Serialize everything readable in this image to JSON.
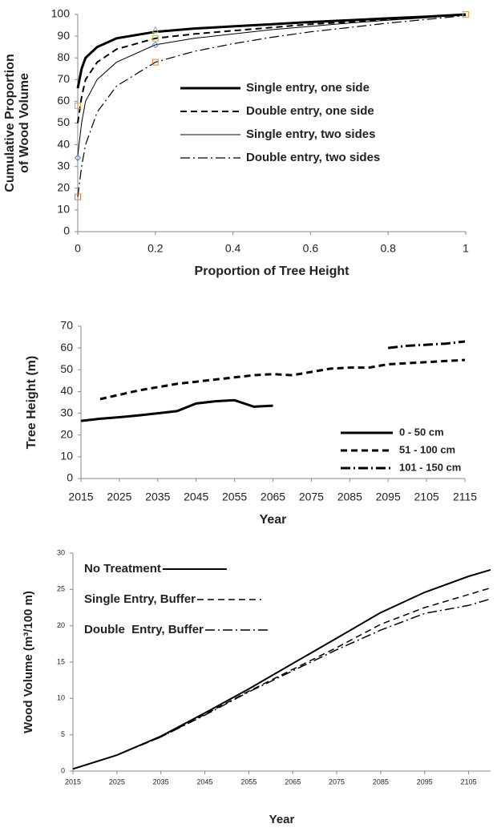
{
  "chart_data": [
    {
      "type": "line",
      "y_label": [
        "Cumulative Proportion",
        "of Wood Volume"
      ],
      "x_label": "Proportion of Tree Height",
      "xlim": [
        0,
        1
      ],
      "ylim": [
        0,
        100
      ],
      "xticks": [
        0,
        0.2,
        0.4,
        0.6,
        0.8,
        1
      ],
      "yticks": [
        0,
        10,
        20,
        30,
        40,
        50,
        60,
        70,
        80,
        90,
        100
      ],
      "legend": "center-right",
      "x": [
        0,
        0.01,
        0.02,
        0.05,
        0.1,
        0.2,
        0.3,
        0.4,
        0.5,
        0.6,
        0.7,
        0.8,
        0.9,
        1
      ],
      "series": [
        {
          "name": "Single entry, one side",
          "color": "#000000",
          "width": 3,
          "dash": "solid",
          "values": [
            66,
            75,
            80,
            85,
            89,
            92,
            93.5,
            94.5,
            95.5,
            96.5,
            97.3,
            98.2,
            99,
            100
          ]
        },
        {
          "name": "Double entry, one side",
          "color": "#000000",
          "width": 2,
          "dash": "dashed",
          "values": [
            50,
            62,
            70,
            78,
            84,
            89,
            91,
            92.5,
            94,
            95.5,
            96.5,
            97.7,
            98.8,
            100
          ]
        },
        {
          "name": "Single entry, two sides",
          "color": "#000000",
          "width": 1,
          "dash": "solid",
          "values": [
            35,
            50,
            60,
            70,
            78,
            86,
            89,
            91,
            93,
            94.5,
            96,
            97.3,
            98.5,
            100
          ]
        },
        {
          "name": "Double entry, two sides",
          "color": "#000000",
          "width": 1.2,
          "dash": "dashdot",
          "values": [
            16,
            30,
            40,
            55,
            67,
            78,
            83,
            86.5,
            89.5,
            92,
            94,
            96,
            97.7,
            99.5
          ]
        }
      ],
      "points": [
        {
          "x": 0,
          "y": 58,
          "color": "#e8a33d",
          "shape": "square"
        },
        {
          "x": 0,
          "y": 16,
          "color": "#e07b39",
          "shape": "square"
        },
        {
          "x": 0,
          "y": 34,
          "color": "#4a7fc1",
          "shape": "diamond"
        },
        {
          "x": 0.2,
          "y": 78,
          "color": "#e07b39",
          "shape": "square"
        },
        {
          "x": 0.2,
          "y": 86,
          "color": "#4a7fc1",
          "shape": "diamond"
        },
        {
          "x": 0.2,
          "y": 89,
          "color": "#e8a33d",
          "shape": "square"
        },
        {
          "x": 0.2,
          "y": 93,
          "color": "#a0a0a0",
          "shape": "triangle"
        },
        {
          "x": 1,
          "y": 100,
          "color": "#e8a33d",
          "shape": "square"
        }
      ]
    },
    {
      "type": "line",
      "y_label": [
        "Tree Height (m)"
      ],
      "x_label": "Year",
      "xlim": [
        2015,
        2115
      ],
      "ylim": [
        0,
        70
      ],
      "xticks": [
        2015,
        2025,
        2035,
        2045,
        2055,
        2065,
        2075,
        2085,
        2095,
        2105,
        2115
      ],
      "yticks": [
        0,
        10,
        20,
        30,
        40,
        50,
        60,
        70
      ],
      "legend": "center-right",
      "x": [
        2015,
        2020,
        2025,
        2030,
        2035,
        2040,
        2045,
        2050,
        2055,
        2060,
        2065,
        2070,
        2075,
        2080,
        2085,
        2090,
        2095,
        2100,
        2105,
        2110,
        2115
      ],
      "series": [
        {
          "name": "0 - 50 cm",
          "color": "#000000",
          "width": 3,
          "dash": "solid",
          "values": [
            26.5,
            27.5,
            28.2,
            29,
            30,
            31,
            34.5,
            35.5,
            36,
            33,
            33.5,
            null,
            null,
            null,
            null,
            null,
            null,
            null,
            null,
            null,
            null
          ]
        },
        {
          "name": "51 - 100 cm",
          "color": "#000000",
          "width": 3,
          "dash": "dashed",
          "values": [
            null,
            36.5,
            38.5,
            40.5,
            42,
            43.5,
            44.5,
            45.5,
            46.5,
            47.5,
            48,
            47.5,
            49,
            50.5,
            51,
            51,
            52.5,
            53,
            53.5,
            54,
            54.5
          ]
        },
        {
          "name": "101 - 150 cm",
          "color": "#000000",
          "width": 3,
          "dash": "dashdot",
          "values": [
            null,
            null,
            null,
            null,
            null,
            null,
            null,
            null,
            null,
            null,
            null,
            null,
            null,
            null,
            null,
            null,
            60,
            61,
            61.5,
            62,
            63
          ]
        }
      ]
    },
    {
      "type": "line",
      "y_label": [
        "Wood Volume (m³/100 m)"
      ],
      "x_label": "Year",
      "xlim": [
        2015,
        2110
      ],
      "ylim": [
        0,
        30
      ],
      "xticks": [
        2015,
        2025,
        2035,
        2045,
        2055,
        2065,
        2075,
        2085,
        2095,
        2105
      ],
      "yticks": [
        0,
        5,
        10,
        15,
        20,
        25,
        30
      ],
      "legend": "top-left",
      "x": [
        2015,
        2025,
        2035,
        2045,
        2055,
        2065,
        2075,
        2085,
        2095,
        2105,
        2110
      ],
      "series": [
        {
          "name": "No Treatment",
          "color": "#000000",
          "width": 2,
          "dash": "solid",
          "values": [
            0.3,
            2.2,
            4.8,
            8,
            11.3,
            14.8,
            18.3,
            21.8,
            24.6,
            26.8,
            27.7
          ]
        },
        {
          "name": "Single Entry, Buffer",
          "color": "#000000",
          "width": 1.5,
          "dash": "dashed",
          "values": [
            0.3,
            2.2,
            4.7,
            7.8,
            11,
            14,
            17,
            20.2,
            22.5,
            24.3,
            25.2
          ]
        },
        {
          "name": "Double  Entry, Buffer",
          "color": "#000000",
          "width": 1.5,
          "dash": "dashdot",
          "values": [
            0.3,
            2.2,
            4.7,
            7.7,
            10.9,
            13.8,
            16.7,
            19.4,
            21.7,
            22.8,
            23.7
          ]
        }
      ]
    }
  ]
}
